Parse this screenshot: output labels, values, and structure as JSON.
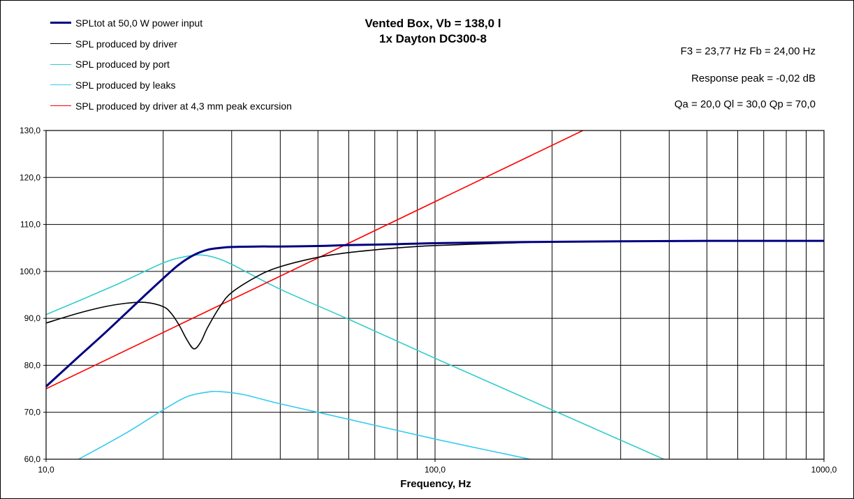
{
  "chart_data": {
    "type": "line",
    "title": "Vented Box, Vb = 138,0 l",
    "subtitle": "1x Dayton DC300-8",
    "xlabel": "Frequency, Hz",
    "ylabel": "",
    "x_scale": "log",
    "xlim": [
      10,
      1000
    ],
    "ylim": [
      60,
      130
    ],
    "grid": true,
    "legend_position": "top-left",
    "x_ticks": [
      "10,0",
      "100,0",
      "1000,0"
    ],
    "y_ticks": [
      "60,0",
      "70,0",
      "80,0",
      "90,0",
      "100,0",
      "110,0",
      "120,0",
      "130,0"
    ],
    "annotations": [
      "F3 = 23,77 Hz  Fb = 24,00 Hz",
      "Response  peak = -0,02 dB",
      "Qa = 20,0  Ql = 30,0  Qp = 70,0"
    ],
    "series": [
      {
        "name": "SPLtot at 50,0 W power input",
        "color": "#000080",
        "points": [
          [
            10,
            75.5
          ],
          [
            12,
            81.5
          ],
          [
            14,
            86.5
          ],
          [
            16,
            91
          ],
          [
            18,
            95
          ],
          [
            20,
            98.5
          ],
          [
            22,
            101.5
          ],
          [
            24,
            103.5
          ],
          [
            26,
            104.6
          ],
          [
            28,
            105
          ],
          [
            30,
            105.2
          ],
          [
            35,
            105.3
          ],
          [
            40,
            105.3
          ],
          [
            50,
            105.4
          ],
          [
            60,
            105.6
          ],
          [
            70,
            105.7
          ],
          [
            80,
            105.8
          ],
          [
            100,
            106
          ],
          [
            150,
            106.2
          ],
          [
            200,
            106.3
          ],
          [
            300,
            106.4
          ],
          [
            500,
            106.5
          ],
          [
            1000,
            106.5
          ]
        ]
      },
      {
        "name": "SPL produced by driver",
        "color": "#000000",
        "points": [
          [
            10,
            89
          ],
          [
            12,
            91
          ],
          [
            14,
            92.4
          ],
          [
            16,
            93.2
          ],
          [
            18,
            93.4
          ],
          [
            20,
            92.5
          ],
          [
            21,
            91
          ],
          [
            22,
            88.5
          ],
          [
            23,
            85.5
          ],
          [
            24,
            83.5
          ],
          [
            25,
            85
          ],
          [
            26,
            88
          ],
          [
            28,
            92.5
          ],
          [
            30,
            95.5
          ],
          [
            35,
            99
          ],
          [
            40,
            101
          ],
          [
            50,
            103
          ],
          [
            60,
            104
          ],
          [
            80,
            105
          ],
          [
            100,
            105.5
          ],
          [
            150,
            106
          ],
          [
            200,
            106.3
          ],
          [
            300,
            106.4
          ],
          [
            1000,
            106.5
          ]
        ]
      },
      {
        "name": "SPL produced by port",
        "color": "#33CCCC",
        "points": [
          [
            10,
            90.8
          ],
          [
            15,
            97
          ],
          [
            20,
            101.8
          ],
          [
            23,
            103.2
          ],
          [
            25,
            103.5
          ],
          [
            27,
            103
          ],
          [
            30,
            101.5
          ],
          [
            40,
            96.2
          ],
          [
            60,
            89.8
          ],
          [
            100,
            81.5
          ],
          [
            200,
            70.5
          ],
          [
            400,
            59.5
          ]
        ]
      },
      {
        "name": "SPL produced by leaks",
        "color": "#33CCEE",
        "points": [
          [
            12,
            59.8
          ],
          [
            16,
            65.5
          ],
          [
            20,
            70.5
          ],
          [
            23,
            73.3
          ],
          [
            26,
            74.3
          ],
          [
            28,
            74.4
          ],
          [
            32,
            73.8
          ],
          [
            40,
            71.8
          ],
          [
            60,
            68.5
          ],
          [
            100,
            64.3
          ],
          [
            150,
            61.2
          ],
          [
            180,
            59.8
          ]
        ]
      },
      {
        "name": "SPL produced by driver at 4,3 mm peak excursion",
        "color": "#FF0000",
        "points": [
          [
            10,
            75
          ],
          [
            240,
            130
          ]
        ]
      }
    ]
  }
}
